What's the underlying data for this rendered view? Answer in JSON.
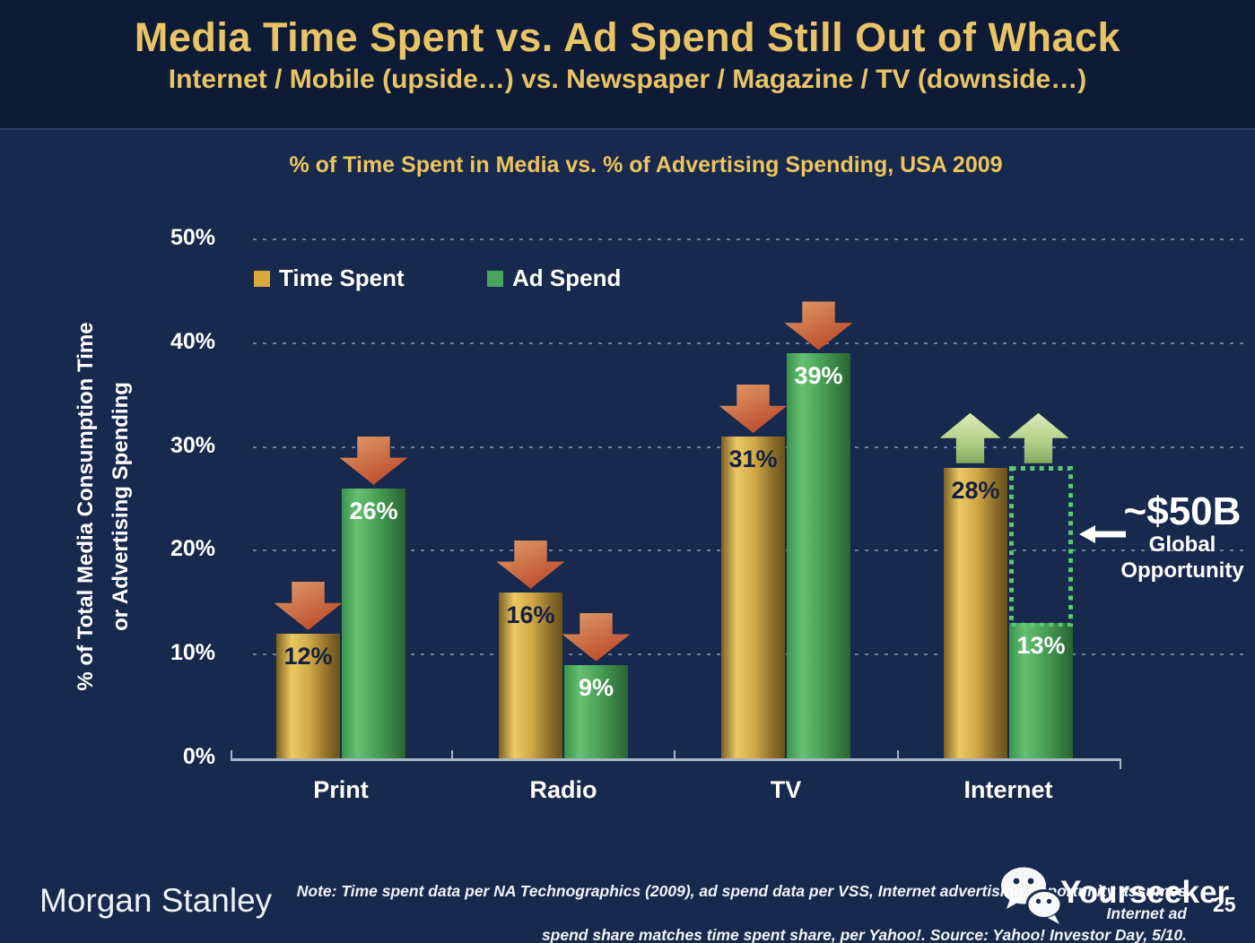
{
  "header": {
    "title": "Media Time Spent vs. Ad Spend Still Out of Whack",
    "subtitle": "Internet / Mobile (upside…) vs. Newspaper / Magazine / TV (downside…)"
  },
  "chart_data": {
    "type": "bar",
    "title": "% of Time Spent in Media vs. % of Advertising Spending, USA 2009",
    "ylabel_line1": "% of Total Media Consumption Time",
    "ylabel_line2": "or Advertising Spending",
    "categories": [
      "Print",
      "Radio",
      "TV",
      "Internet"
    ],
    "series": [
      {
        "name": "Time Spent",
        "color": "#d9a83f",
        "label_color": "#132040",
        "values": [
          12,
          16,
          31,
          28
        ]
      },
      {
        "name": "Ad Spend",
        "color": "#4ca35c",
        "label_color": "#ffffff",
        "values": [
          26,
          9,
          39,
          13
        ]
      }
    ],
    "ylim": [
      0,
      50
    ],
    "yticks": [
      0,
      10,
      20,
      30,
      40,
      50
    ],
    "grid": "dashed-horizontal",
    "legend_position": "top-left-inside",
    "annotations": {
      "down_arrow_categories": [
        "Print",
        "Radio",
        "TV"
      ],
      "up_arrow_category": "Internet",
      "opportunity_value": "~$50B",
      "opportunity_label_line1": "Global",
      "opportunity_label_line2": "Opportunity",
      "opportunity_gap_series": "Ad Spend",
      "opportunity_gap_from": 13,
      "opportunity_gap_to": 28
    },
    "colors": {
      "background": "#17294c",
      "header_background": "#0d1b36",
      "gold_text": "#e9c466",
      "down_arrow": "#bd4c2c",
      "up_arrow": "#b4d289",
      "dotted_rect": "#5dc873",
      "axis": "#a9b4c8"
    }
  },
  "footer": {
    "brand": "Morgan Stanley",
    "note_line1": "Note: Time spent data per NA Technographics (2009), ad spend data per VSS, Internet advertising opportunity assumes Internet ad",
    "note_line2": "spend share matches time spent share, per Yahoo!. Source: Yahoo! Investor Day, 5/10.",
    "watermark": "Yourseeker",
    "page_number": "25"
  }
}
